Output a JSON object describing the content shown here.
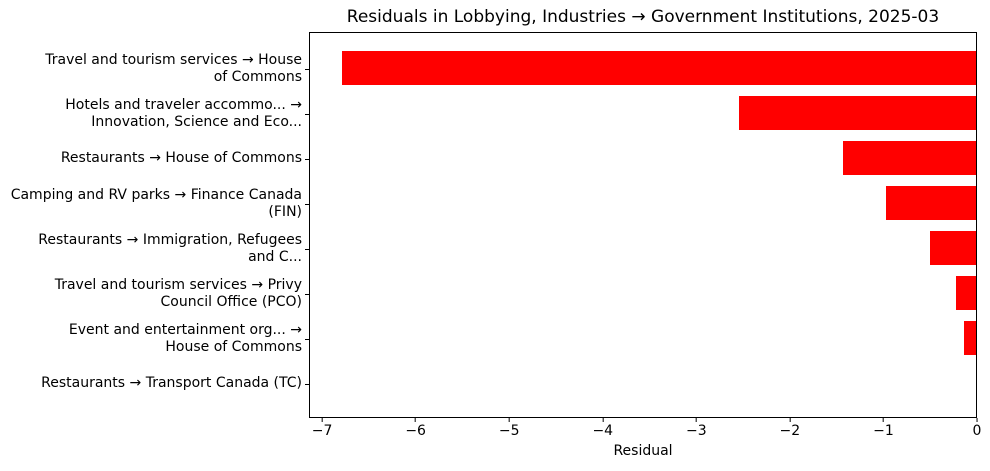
{
  "chart_data": {
    "type": "bar",
    "orientation": "horizontal",
    "title": "Residuals in Lobbying, Industries → Government Institutions, 2025-03",
    "xlabel": "Residual",
    "xlim": [
      -7.14,
      0
    ],
    "xticks": [
      -7,
      -6,
      -5,
      -4,
      -3,
      -2,
      -1,
      0
    ],
    "xtick_labels": [
      "−7",
      "−6",
      "−5",
      "−4",
      "−3",
      "−2",
      "−1",
      "0"
    ],
    "bar_color": "#ff0000",
    "grid": false,
    "categories": [
      "Travel and tourism services → House of Commons",
      "Hotels and traveler accommo... → Innovation, Science and Eco...",
      "Restaurants → House of Commons",
      "Camping and RV parks → Finance Canada (FIN)",
      "Restaurants → Immigration, Refugees and C...",
      "Travel and tourism services → Privy Council Office (PCO)",
      "Event and entertainment org... → House of Commons",
      "Restaurants → Transport Canada (TC)"
    ],
    "categories_wrapped": [
      [
        "Travel and tourism services → House",
        "of Commons"
      ],
      [
        "Hotels and traveler accommo... →",
        "Innovation, Science and Eco..."
      ],
      [
        "Restaurants → House of Commons"
      ],
      [
        "Camping and RV parks → Finance Canada",
        "(FIN)"
      ],
      [
        "Restaurants → Immigration, Refugees",
        "and C..."
      ],
      [
        "Travel and tourism services → Privy",
        "Council Office (PCO)"
      ],
      [
        "Event and entertainment org... →",
        "House of Commons"
      ],
      [
        "Restaurants → Transport Canada (TC)"
      ]
    ],
    "values": [
      -6.8,
      -2.54,
      -1.43,
      -0.96,
      -0.49,
      -0.21,
      -0.13,
      0.0
    ]
  }
}
